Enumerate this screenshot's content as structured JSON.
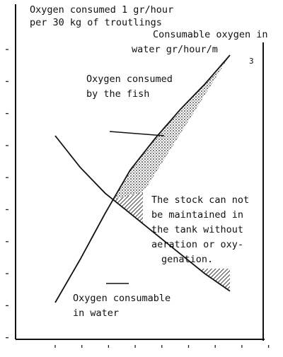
{
  "chart_data": {
    "type": "area",
    "title": "",
    "xlabel": "",
    "ylabel": "",
    "y_unit_label_lines": [
      "Oxygen consumed 1 gr/hour",
      "per 30 kg of troutlings"
    ],
    "right_label_lines": [
      "Consumable oxygen in",
      "water gr/hour/m"
    ],
    "right_label_superscript": "3",
    "x_tick_labels": [
      "",
      "",
      "",
      "",
      "",
      "",
      "",
      "",
      ""
    ],
    "y_tick_labels": [
      "",
      "",
      "",
      "",
      "",
      "",
      "",
      "",
      "",
      ""
    ],
    "xlim": [
      0,
      8
    ],
    "ylim": [
      0,
      9
    ],
    "series": [
      {
        "name": "Oxygen consumed by the fish",
        "x": [
          0,
          1,
          2,
          3,
          4,
          5,
          6,
          7
        ],
        "y": [
          0.2,
          1.7,
          3.3,
          4.8,
          5.9,
          6.9,
          7.8,
          8.8
        ]
      },
      {
        "name": "Oxygen consumable in water",
        "x": [
          0,
          1,
          2,
          3,
          4,
          5,
          6,
          7
        ],
        "y": [
          6.0,
          4.9,
          4.0,
          3.3,
          2.6,
          1.9,
          1.2,
          0.6
        ]
      }
    ],
    "annotations": {
      "fish_label_lines": [
        "Oxygen consumed",
        "by the fish"
      ],
      "water_label_lines": [
        "Oxygen consumable",
        "in water"
      ],
      "note_lines": [
        "The stock can not",
        "be maintained in",
        "the tank without",
        "aeration or oxy-",
        "genation."
      ]
    },
    "grid": false,
    "legend": "none"
  }
}
